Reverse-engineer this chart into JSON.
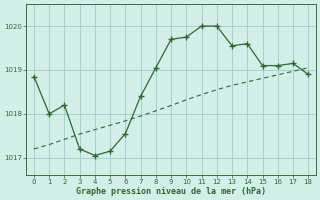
{
  "x": [
    0,
    1,
    2,
    3,
    4,
    5,
    6,
    7,
    8,
    9,
    10,
    11,
    12,
    13,
    14,
    15,
    16,
    17,
    18
  ],
  "y_line": [
    1018.85,
    1018.0,
    1018.2,
    1017.2,
    1017.05,
    1017.15,
    1017.55,
    1018.4,
    1019.05,
    1019.7,
    1019.75,
    1020.0,
    1020.0,
    1019.55,
    1019.6,
    1019.1,
    1019.1,
    1019.15,
    1018.9
  ],
  "y_trend": [
    1017.2,
    1017.3,
    1017.42,
    1017.54,
    1017.64,
    1017.74,
    1017.84,
    1017.95,
    1018.07,
    1018.19,
    1018.32,
    1018.44,
    1018.55,
    1018.65,
    1018.73,
    1018.81,
    1018.89,
    1018.97,
    1019.05
  ],
  "line_color": "#2d6a2d",
  "trend_color": "#2d6a2d",
  "bg_color": "#d4eeea",
  "grid_color": "#9ecdc6",
  "xlabel": "Graphe pression niveau de la mer (hPa)",
  "ylim": [
    1016.6,
    1020.5
  ],
  "yticks": [
    1017,
    1018,
    1019,
    1020
  ],
  "xticks": [
    0,
    1,
    2,
    3,
    4,
    5,
    6,
    7,
    8,
    9,
    10,
    11,
    12,
    13,
    14,
    15,
    16,
    17,
    18
  ],
  "figsize": [
    3.2,
    2.0
  ],
  "dpi": 100
}
